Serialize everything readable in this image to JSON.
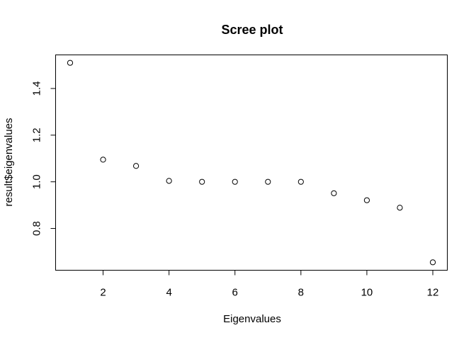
{
  "chart_data": {
    "type": "scatter",
    "title": "Scree plot",
    "xlabel": "Eigenvalues",
    "ylabel": "result$eigenvalues",
    "x": [
      1,
      2,
      3,
      4,
      5,
      6,
      7,
      8,
      9,
      10,
      11,
      12
    ],
    "y": [
      1.51,
      1.095,
      1.068,
      1.004,
      1.0,
      1.0,
      1.0,
      1.0,
      0.951,
      0.921,
      0.889,
      0.655
    ],
    "xlim": [
      0.56,
      12.44
    ],
    "ylim": [
      0.621,
      1.544
    ],
    "xticks": [
      2,
      4,
      6,
      8,
      10,
      12
    ],
    "yticks": [
      0.8,
      1.0,
      1.2,
      1.4
    ],
    "xtick_labels": [
      "2",
      "4",
      "6",
      "8",
      "10",
      "12"
    ],
    "ytick_labels": [
      "0.8",
      "1.0",
      "1.2",
      "1.4"
    ],
    "grid": false,
    "legend": false,
    "marker": "open-circle",
    "color": "#000000"
  }
}
